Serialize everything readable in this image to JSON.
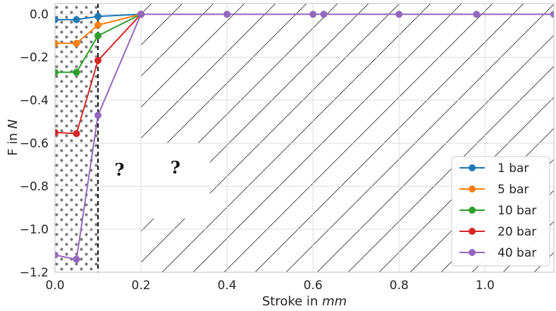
{
  "chart_data": {
    "type": "line",
    "xlabel": "Stroke in",
    "xlabel_unit": "mm",
    "ylabel": "F in",
    "ylabel_unit": "N",
    "xlim": [
      0.0,
      1.16
    ],
    "ylim": [
      -1.2,
      0.05
    ],
    "xticks": [
      0.0,
      0.2,
      0.4,
      0.6,
      0.8,
      1.0
    ],
    "xtick_labels": [
      "0.0",
      "0.2",
      "0.4",
      "0.6",
      "0.8",
      "1.0"
    ],
    "yticks": [
      0.0,
      -0.2,
      -0.4,
      -0.6,
      -0.8,
      -1.0,
      -1.2
    ],
    "ytick_labels": [
      "0.0",
      "−0.2",
      "−0.4",
      "−0.6",
      "−0.8",
      "−1.0",
      "−1.2"
    ],
    "grid": true,
    "legend_position": "bottom-right",
    "dashed_line_x": 0.1,
    "dotted_region_x": [
      0.0,
      0.1
    ],
    "hatched_region_x": [
      0.2,
      1.16
    ],
    "annotations": [
      {
        "text": "?",
        "x": 0.15,
        "y": -0.75
      },
      {
        "text": "?",
        "x": 0.28,
        "y": -0.74
      }
    ],
    "series": [
      {
        "name": "1 bar",
        "color": "#1f77b4",
        "x": [
          0.0,
          0.05,
          0.1,
          0.2
        ],
        "y": [
          -0.025,
          -0.025,
          -0.01,
          0.0
        ]
      },
      {
        "name": "5 bar",
        "color": "#ff7f0e",
        "x": [
          0.0,
          0.05,
          0.1,
          0.2
        ],
        "y": [
          -0.135,
          -0.135,
          -0.05,
          0.0
        ]
      },
      {
        "name": "10 bar",
        "color": "#2ca02c",
        "x": [
          0.0,
          0.05,
          0.1,
          0.2
        ],
        "y": [
          -0.27,
          -0.27,
          -0.1,
          0.0
        ]
      },
      {
        "name": "20 bar",
        "color": "#d62728",
        "x": [
          0.0,
          0.05,
          0.1,
          0.2
        ],
        "y": [
          -0.55,
          -0.555,
          -0.215,
          0.0
        ]
      },
      {
        "name": "40 bar",
        "color": "#9467bd",
        "x": [
          0.0,
          0.05,
          0.1,
          0.2,
          0.4,
          0.6,
          0.625,
          0.8,
          0.98,
          1.16
        ],
        "y": [
          -1.12,
          -1.14,
          -0.47,
          0.0,
          0.0,
          0.0,
          0.0,
          0.0,
          0.0,
          0.0
        ]
      }
    ]
  }
}
